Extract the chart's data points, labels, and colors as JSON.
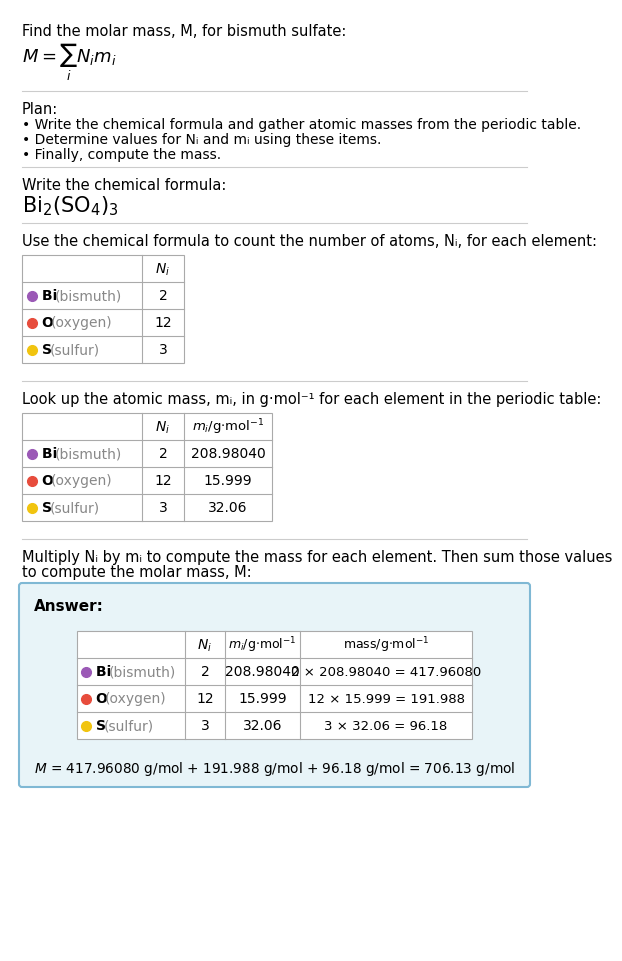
{
  "title_text": "Find the molar mass, M, for bismuth sulfate:",
  "plan_header": "Plan:",
  "plan_bullets": [
    "• Write the chemical formula and gather atomic masses from the periodic table.",
    "• Determine values for Nᵢ and mᵢ using these items.",
    "• Finally, compute the mass."
  ],
  "formula_header": "Write the chemical formula:",
  "count_header": "Use the chemical formula to count the number of atoms, Nᵢ, for each element:",
  "lookup_header": "Look up the atomic mass, mᵢ, in g·mol⁻¹ for each element in the periodic table:",
  "multiply_header_line1": "Multiply Nᵢ by mᵢ to compute the mass for each element. Then sum those values",
  "multiply_header_line2": "to compute the molar mass, M:",
  "element_symbols": [
    "Bi",
    "O",
    "S"
  ],
  "element_names": [
    "bismuth",
    "oxygen",
    "sulfur"
  ],
  "element_colors": [
    "#9B59B6",
    "#E74C3C",
    "#F1C40F"
  ],
  "N_i": [
    2,
    12,
    3
  ],
  "m_i": [
    "208.98040",
    "15.999",
    "32.06"
  ],
  "mass_calcs": [
    "2 × 208.98040 = 417.96080",
    "12 × 15.999 = 191.988",
    "3 × 32.06 = 96.18"
  ],
  "final_eq": "M = 417.96080 g/mol + 191.988 g/mol + 96.18 g/mol = 706.13 g/mol",
  "answer_label": "Answer:",
  "bg_color": "#FFFFFF",
  "answer_box_color": "#E8F4F8",
  "answer_box_border": "#7FB8D4",
  "sep_color": "#CCCCCC",
  "table_border_color": "#AAAAAA",
  "text_color": "#000000",
  "gray_color": "#888888"
}
